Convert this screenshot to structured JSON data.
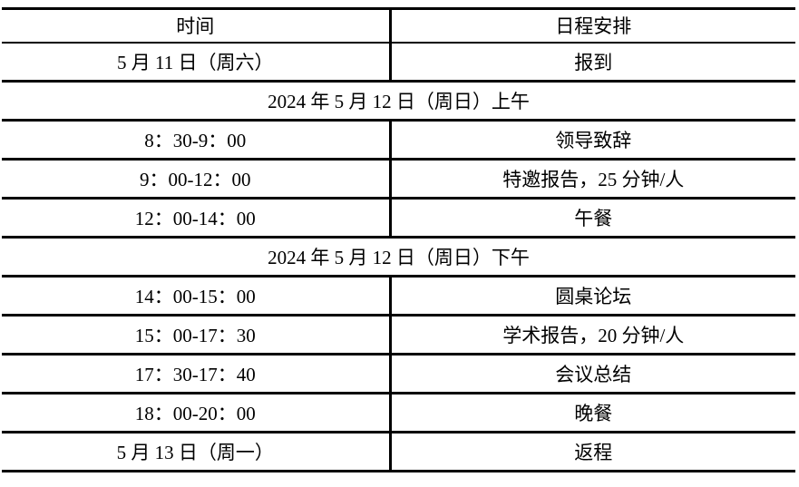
{
  "schedule": {
    "header": {
      "time": "时间",
      "agenda": "日程安排"
    },
    "rows": [
      {
        "type": "row",
        "time": "5 月 11 日（周六）",
        "agenda": "报到"
      },
      {
        "type": "section",
        "text": "2024 年 5 月 12 日（周日）上午"
      },
      {
        "type": "row",
        "time": "8：30-9：00",
        "agenda": "领导致辞"
      },
      {
        "type": "row",
        "time": "9：00-12：00",
        "agenda": "特邀报告，25 分钟/人"
      },
      {
        "type": "row",
        "time": "12：00-14：00",
        "agenda": "午餐"
      },
      {
        "type": "section",
        "text": "2024 年 5 月 12 日（周日）下午"
      },
      {
        "type": "row",
        "time": "14：00-15：00",
        "agenda": "圆桌论坛"
      },
      {
        "type": "row",
        "time": "15：00-17：30",
        "agenda": "学术报告，20 分钟/人"
      },
      {
        "type": "row",
        "time": "17：30-17：40",
        "agenda": "会议总结"
      },
      {
        "type": "row",
        "time": "18：00-20：00",
        "agenda": "晚餐"
      },
      {
        "type": "row",
        "time": "5 月 13 日（周一）",
        "agenda": "返程"
      }
    ],
    "colors": {
      "border": "#000000",
      "background": "#ffffff",
      "text": "#000000"
    }
  }
}
